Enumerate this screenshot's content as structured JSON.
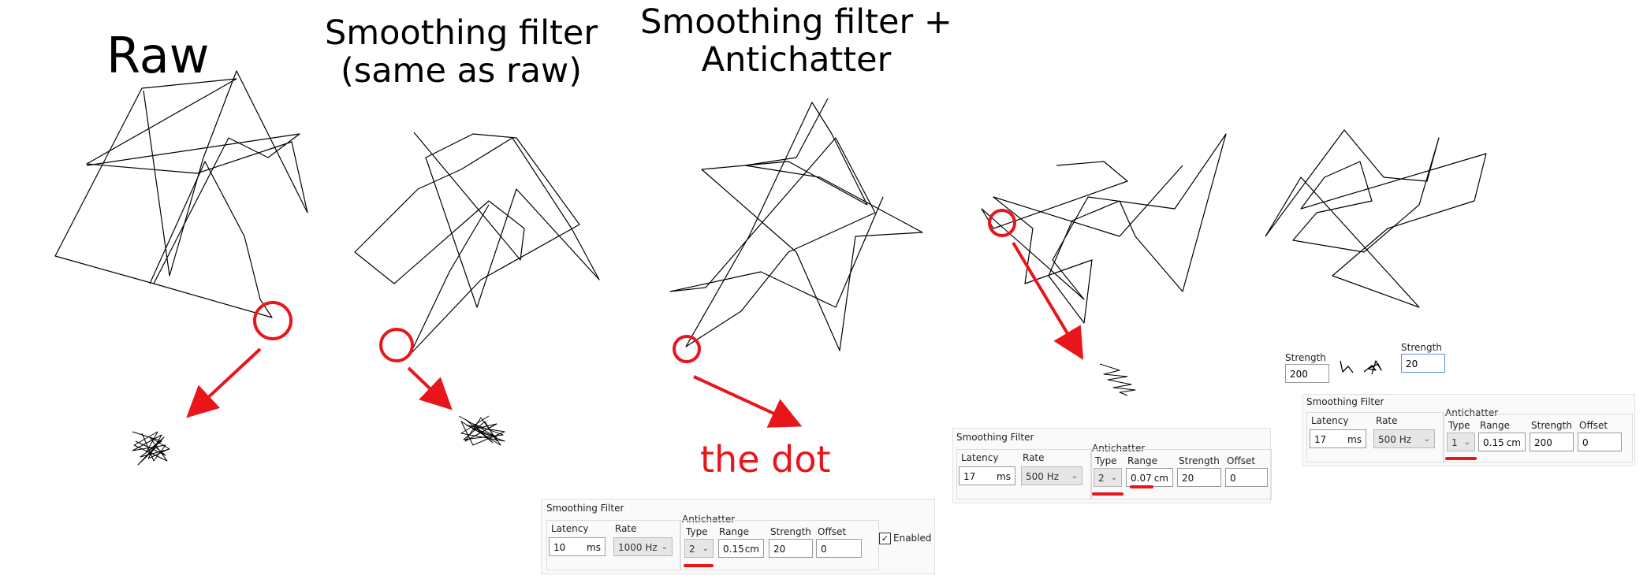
{
  "titles": {
    "raw": "Raw",
    "smooth1_line1": "Smoothing filter",
    "smooth1_line2": "(same as raw)",
    "smooth2_line1": "Smoothing filter +",
    "smooth2_line2": "Antichatter"
  },
  "annotation": {
    "the_dot": "the dot"
  },
  "colors": {
    "annotation": "#e8151b",
    "stroke": "#000000"
  },
  "panels": [
    {
      "group_title": "Smoothing Filter",
      "latency_label": "Latency",
      "latency_value": "10",
      "latency_unit": "ms",
      "rate_label": "Rate",
      "rate_value": "1000 Hz",
      "antichatter_title": "Antichatter",
      "type_label": "Type",
      "type_value": "2",
      "range_label": "Range",
      "range_value": "0.15",
      "range_unit": "cm",
      "strength_label": "Strength",
      "strength_value": "20",
      "offset_label": "Offset",
      "offset_value": "0",
      "enabled_label": "Enabled"
    },
    {
      "group_title": "Smoothing Filter",
      "latency_label": "Latency",
      "latency_value": "17",
      "latency_unit": "ms",
      "rate_label": "Rate",
      "rate_value": "500 Hz",
      "antichatter_title": "Antichatter",
      "type_label": "Type",
      "type_value": "2",
      "range_label": "Range",
      "range_value": "0.07",
      "range_unit": "cm",
      "strength_label": "Strength",
      "strength_value": "20",
      "offset_label": "Offset",
      "offset_value": "0"
    },
    {
      "group_title": "Smoothing Filter",
      "latency_label": "Latency",
      "latency_value": "17",
      "latency_unit": "ms",
      "rate_label": "Rate",
      "rate_value": "500 Hz",
      "antichatter_title": "Antichatter",
      "type_label": "Type",
      "type_value": "1",
      "range_label": "Range",
      "range_value": "0.15",
      "range_unit": "cm",
      "strength_label": "Strength",
      "strength_value": "200",
      "offset_label": "Offset",
      "offset_value": "0"
    }
  ],
  "strength_compare": {
    "left_label": "Strength",
    "left_value": "200",
    "right_label": "Strength",
    "right_value": "20"
  }
}
